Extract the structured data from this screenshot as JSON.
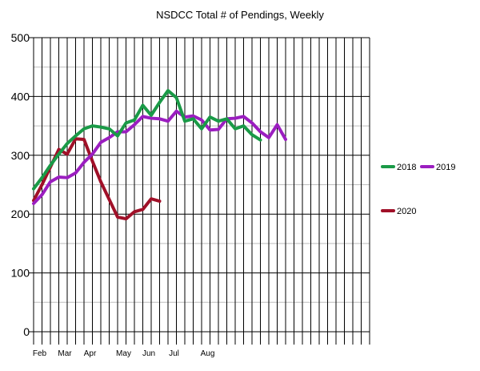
{
  "chart_data": {
    "type": "line",
    "title": "NSDCC Total # of Pendings, Weekly",
    "xlabel": "",
    "ylabel": "",
    "ylim": [
      0,
      500
    ],
    "yticks": [
      0,
      100,
      200,
      300,
      400,
      500
    ],
    "x_weeks": 40,
    "month_labels": [
      {
        "label": "Feb",
        "week": 1
      },
      {
        "label": "Mar",
        "week": 4
      },
      {
        "label": "Apr",
        "week": 7
      },
      {
        "label": "May",
        "week": 11
      },
      {
        "label": "Jun",
        "week": 14
      },
      {
        "label": "Jul",
        "week": 17
      },
      {
        "label": "Aug",
        "week": 21
      }
    ],
    "grid": true,
    "legend_position": "right",
    "series": [
      {
        "name": "2018",
        "color": "#1a9a47",
        "values": [
          243,
          262,
          283,
          302,
          320,
          333,
          345,
          350,
          348,
          345,
          333,
          355,
          360,
          385,
          368,
          390,
          410,
          398,
          358,
          362,
          345,
          365,
          358,
          362,
          345,
          350,
          335,
          326
        ]
      },
      {
        "name": "2019",
        "color": "#9b1ec0",
        "values": [
          218,
          233,
          255,
          263,
          262,
          270,
          288,
          302,
          322,
          330,
          340,
          340,
          352,
          366,
          363,
          362,
          358,
          375,
          365,
          367,
          360,
          343,
          344,
          362,
          363,
          366,
          355,
          340,
          330,
          352,
          327
        ]
      },
      {
        "name": "2020",
        "color": "#a01028",
        "values": [
          223,
          250,
          280,
          310,
          302,
          328,
          327,
          290,
          255,
          225,
          195,
          192,
          204,
          208,
          226,
          222
        ]
      }
    ]
  }
}
